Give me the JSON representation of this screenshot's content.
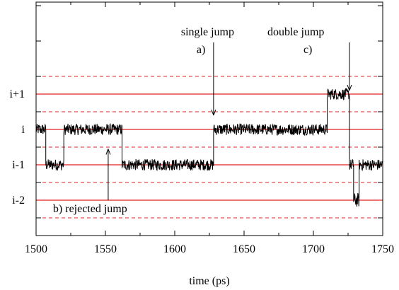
{
  "chart_data": {
    "type": "line",
    "title": "",
    "xlabel": "time (ps)",
    "ylabel": "",
    "xlim": [
      1500,
      1750
    ],
    "ylim": [
      -3,
      3.6
    ],
    "xticks": [
      1500,
      1550,
      1600,
      1650,
      1700,
      1750
    ],
    "xtick_labels": [
      "1500",
      "1550",
      "1600",
      "1650",
      "1700",
      "1750"
    ],
    "yticks": [
      1,
      0,
      -1,
      -2
    ],
    "ytick_labels": [
      "i+1",
      "i",
      "i-1",
      "i-2"
    ],
    "grid": false,
    "levels": {
      "solid": [
        1,
        0,
        -1,
        -2
      ],
      "dashed": [
        1.5,
        0.5,
        -0.5,
        -1.5,
        -2.5
      ],
      "solid_color": "#e02020",
      "dashed_color": "#e02020"
    },
    "trace_color": "#000000",
    "series": [
      {
        "segments": [
          {
            "x": [
              1500,
              1507
            ],
            "y": 0,
            "noise": 0.16
          },
          {
            "x": [
              1507,
              1520
            ],
            "y": -1,
            "noise": 0.16
          },
          {
            "x": [
              1520,
              1562
            ],
            "y": 0,
            "noise": 0.16
          },
          {
            "x": [
              1562,
              1628
            ],
            "y": -1,
            "noise": 0.16
          },
          {
            "x": [
              1628,
              1710
            ],
            "y": 0,
            "noise": 0.16
          },
          {
            "x": [
              1710,
              1726
            ],
            "y": 1,
            "noise": 0.16
          },
          {
            "x": [
              1726,
              1729
            ],
            "y": -1,
            "noise": 0.16
          },
          {
            "x": [
              1729,
              1733
            ],
            "y": -2,
            "noise": 0.2
          },
          {
            "x": [
              1733,
              1750
            ],
            "y": -1,
            "noise": 0.16
          }
        ]
      }
    ],
    "annotations": [
      {
        "label": "a)",
        "text": "single jump",
        "x": 1628,
        "y": 1.1
      },
      {
        "label": "b)",
        "text": "rejected jump",
        "x": 1552,
        "y": -1.95
      },
      {
        "label": "c)",
        "text": "double jump",
        "x": 1726,
        "y": 1.1
      }
    ]
  }
}
